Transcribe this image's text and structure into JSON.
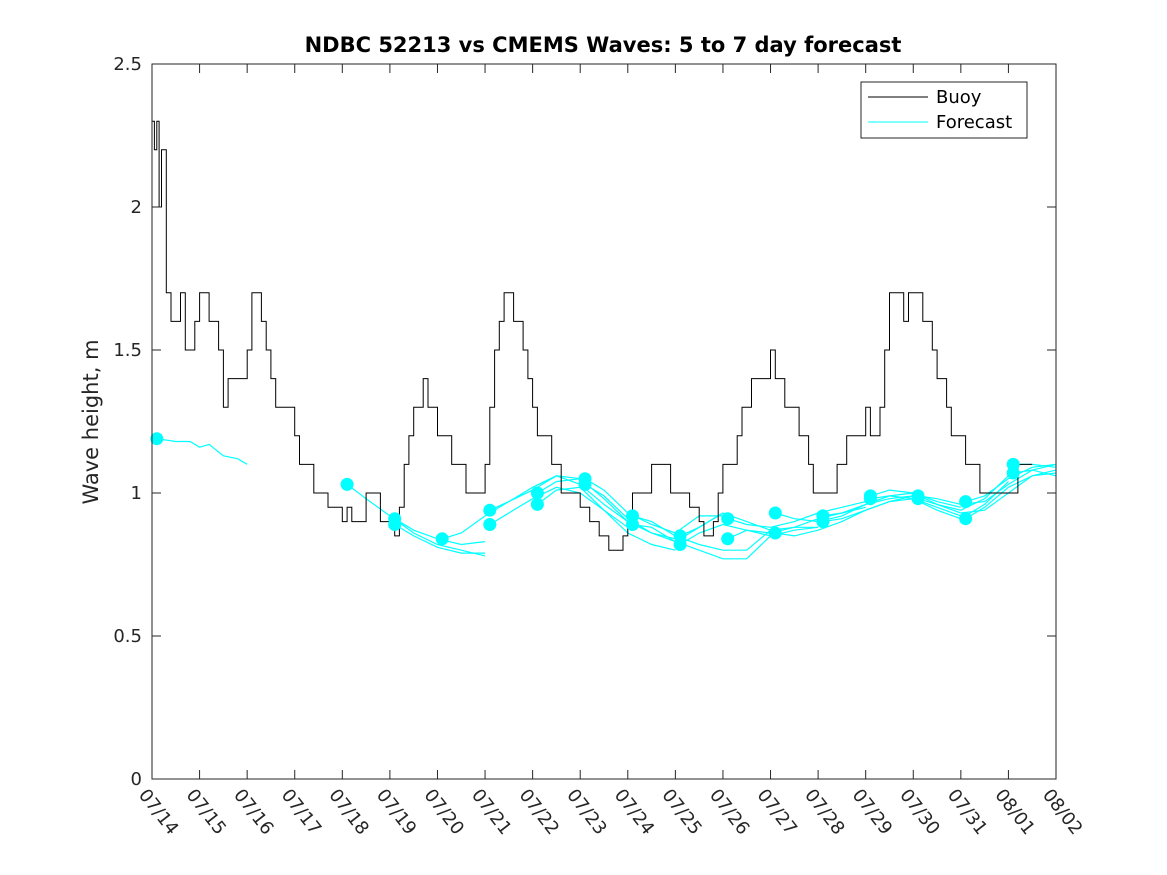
{
  "chart_data": {
    "type": "line",
    "title": "NDBC 52213 vs CMEMS Waves: 5 to 7 day forecast",
    "xlabel": "",
    "ylabel": "Wave height, m",
    "xlim": [
      "07/14",
      "08/02"
    ],
    "ylim": [
      0,
      2.5
    ],
    "yticks": [
      0,
      0.5,
      1,
      1.5,
      2,
      2.5
    ],
    "ytick_labels": [
      "0",
      "0.5",
      "1",
      "1.5",
      "2",
      "2.5"
    ],
    "xtick_labels": [
      "07/14",
      "07/15",
      "07/16",
      "07/17",
      "07/18",
      "07/19",
      "07/20",
      "07/21",
      "07/22",
      "07/23",
      "07/24",
      "07/25",
      "07/26",
      "07/27",
      "07/28",
      "07/29",
      "07/30",
      "07/31",
      "08/01",
      "08/02"
    ],
    "grid": false,
    "legend_position": "top-right",
    "colors": {
      "buoy": "#000000",
      "forecast": "#00ffff",
      "axes": "#262626"
    },
    "series": [
      {
        "name": "Buoy",
        "color": "#000000",
        "x": [
          0.0,
          0.05,
          0.1,
          0.15,
          0.2,
          0.3,
          0.4,
          0.5,
          0.6,
          0.7,
          0.8,
          0.9,
          1.0,
          1.1,
          1.2,
          1.3,
          1.4,
          1.5,
          1.6,
          1.7,
          1.8,
          1.9,
          2.0,
          2.1,
          2.2,
          2.3,
          2.4,
          2.5,
          2.6,
          2.7,
          2.8,
          2.9,
          3.0,
          3.1,
          3.2,
          3.3,
          3.4,
          3.5,
          3.6,
          3.7,
          3.8,
          3.9,
          4.0,
          4.1,
          4.2,
          4.3,
          4.4,
          4.5,
          4.6,
          4.7,
          4.8,
          4.9,
          5.0,
          5.1,
          5.2,
          5.3,
          5.4,
          5.5,
          5.6,
          5.7,
          5.8,
          5.9,
          6.0,
          6.1,
          6.2,
          6.3,
          6.4,
          6.5,
          6.6,
          6.7,
          6.8,
          6.9,
          7.0,
          7.1,
          7.2,
          7.3,
          7.4,
          7.5,
          7.6,
          7.7,
          7.8,
          7.9,
          8.0,
          8.1,
          8.2,
          8.3,
          8.4,
          8.5,
          8.6,
          8.7,
          8.8,
          8.9,
          9.0,
          9.1,
          9.2,
          9.3,
          9.4,
          9.5,
          9.6,
          9.7,
          9.8,
          9.9,
          10.0,
          10.1,
          10.2,
          10.3,
          10.4,
          10.5,
          10.6,
          10.7,
          10.8,
          10.9,
          11.0,
          11.1,
          11.2,
          11.3,
          11.4,
          11.5,
          11.6,
          11.7,
          11.8,
          11.9,
          12.0,
          12.1,
          12.2,
          12.3,
          12.4,
          12.5,
          12.6,
          12.7,
          12.8,
          12.9,
          13.0,
          13.1,
          13.2,
          13.3,
          13.4,
          13.5,
          13.6,
          13.7,
          13.8,
          13.9,
          14.0,
          14.1,
          14.2,
          14.3,
          14.4,
          14.5,
          14.6,
          14.7,
          14.8,
          14.9,
          15.0,
          15.1,
          15.2,
          15.3,
          15.4,
          15.5,
          15.6,
          15.7,
          15.8,
          15.9,
          16.0,
          16.1,
          16.2,
          16.3,
          16.4,
          16.5,
          16.6,
          16.7,
          16.8,
          16.9,
          17.0,
          17.1,
          17.2,
          17.3,
          17.4,
          17.5,
          17.6,
          17.7,
          17.8,
          17.9,
          18.0,
          18.1,
          18.2,
          18.3,
          18.4,
          18.5
        ],
        "values": [
          2.3,
          2.2,
          2.3,
          2.0,
          2.2,
          1.7,
          1.6,
          1.6,
          1.7,
          1.5,
          1.5,
          1.6,
          1.7,
          1.7,
          1.6,
          1.6,
          1.5,
          1.3,
          1.4,
          1.4,
          1.4,
          1.4,
          1.5,
          1.7,
          1.7,
          1.6,
          1.5,
          1.4,
          1.3,
          1.3,
          1.3,
          1.3,
          1.2,
          1.1,
          1.1,
          1.1,
          1.0,
          1.0,
          1.0,
          0.95,
          0.95,
          0.95,
          0.9,
          0.95,
          0.9,
          0.9,
          0.9,
          1.0,
          1.0,
          1.0,
          0.9,
          0.9,
          0.9,
          0.85,
          0.95,
          1.1,
          1.2,
          1.3,
          1.3,
          1.4,
          1.3,
          1.3,
          1.2,
          1.2,
          1.2,
          1.1,
          1.1,
          1.1,
          1.0,
          1.0,
          1.0,
          1.0,
          1.1,
          1.3,
          1.5,
          1.6,
          1.7,
          1.7,
          1.6,
          1.6,
          1.5,
          1.4,
          1.3,
          1.2,
          1.2,
          1.2,
          1.1,
          1.1,
          1.0,
          1.0,
          1.0,
          1.0,
          0.95,
          0.95,
          0.9,
          0.9,
          0.85,
          0.85,
          0.8,
          0.8,
          0.8,
          0.85,
          0.9,
          1.0,
          1.0,
          1.0,
          1.0,
          1.1,
          1.1,
          1.1,
          1.1,
          1.0,
          1.0,
          1.0,
          1.0,
          0.95,
          0.95,
          0.9,
          0.85,
          0.85,
          0.9,
          1.0,
          1.1,
          1.1,
          1.1,
          1.2,
          1.3,
          1.3,
          1.4,
          1.4,
          1.4,
          1.4,
          1.5,
          1.4,
          1.4,
          1.3,
          1.3,
          1.3,
          1.2,
          1.2,
          1.1,
          1.0,
          1.0,
          1.0,
          1.0,
          1.0,
          1.1,
          1.1,
          1.2,
          1.2,
          1.2,
          1.2,
          1.3,
          1.2,
          1.2,
          1.3,
          1.5,
          1.7,
          1.7,
          1.7,
          1.6,
          1.7,
          1.7,
          1.7,
          1.6,
          1.6,
          1.5,
          1.4,
          1.4,
          1.3,
          1.2,
          1.2,
          1.2,
          1.1,
          1.1,
          1.1,
          1.0,
          1.0,
          1.0,
          1.0,
          1.0,
          1.0,
          1.0,
          1.0,
          1.1,
          1.1,
          1.1,
          1.1
        ]
      },
      {
        "name": "Forecast",
        "color": "#00ffff",
        "segments": [
          {
            "x": [
              0.1,
              0.5,
              0.8,
              1.0,
              1.2,
              1.5,
              1.8,
              2.0
            ],
            "values": [
              1.19,
              1.18,
              1.18,
              1.16,
              1.17,
              1.13,
              1.12,
              1.1
            ]
          },
          {
            "x": [
              4.1,
              4.5,
              5.0,
              5.5,
              6.0,
              6.5,
              7.0
            ],
            "values": [
              1.03,
              0.98,
              0.92,
              0.86,
              0.82,
              0.8,
              0.78
            ]
          },
          {
            "x": [
              5.1,
              5.5,
              6.0,
              6.5,
              7.0
            ],
            "values": [
              0.91,
              0.87,
              0.84,
              0.82,
              0.83
            ]
          },
          {
            "x": [
              5.1,
              5.5,
              6.0,
              6.5,
              7.0
            ],
            "values": [
              0.89,
              0.85,
              0.81,
              0.79,
              0.79
            ]
          },
          {
            "x": [
              6.1,
              6.5,
              7.0,
              7.5,
              8.0,
              8.5,
              9.0
            ],
            "values": [
              0.84,
              0.86,
              0.92,
              0.97,
              1.02,
              1.06,
              1.05
            ]
          },
          {
            "x": [
              7.1,
              7.5,
              8.0,
              8.5,
              9.0,
              9.5,
              10.0
            ],
            "values": [
              0.94,
              0.97,
              1.01,
              1.06,
              1.03,
              0.96,
              0.9
            ]
          },
          {
            "x": [
              7.1,
              7.5,
              8.0,
              8.5,
              9.0,
              9.5,
              10.0
            ],
            "values": [
              0.89,
              0.93,
              0.98,
              1.02,
              1.0,
              0.94,
              0.88
            ]
          },
          {
            "x": [
              8.1,
              8.5,
              9.0,
              9.5,
              10.0,
              10.5,
              11.0
            ],
            "values": [
              1.0,
              1.04,
              1.05,
              0.98,
              0.9,
              0.86,
              0.84
            ]
          },
          {
            "x": [
              8.1,
              8.5,
              9.0,
              9.5,
              10.0,
              10.5,
              11.0
            ],
            "values": [
              0.96,
              1.01,
              1.02,
              0.94,
              0.86,
              0.82,
              0.8
            ]
          },
          {
            "x": [
              9.1,
              9.5,
              10.0,
              10.5,
              11.0,
              11.5,
              12.0
            ],
            "values": [
              1.05,
              1.01,
              0.93,
              0.89,
              0.86,
              0.92,
              0.92
            ]
          },
          {
            "x": [
              9.1,
              9.5,
              10.0,
              10.5,
              11.0,
              11.5,
              12.0
            ],
            "values": [
              1.03,
              0.99,
              0.91,
              0.86,
              0.83,
              0.88,
              0.93
            ]
          },
          {
            "x": [
              10.1,
              10.5,
              11.0,
              11.5,
              12.0,
              12.5,
              13.0
            ],
            "values": [
              0.92,
              0.9,
              0.85,
              0.82,
              0.8,
              0.8,
              0.87
            ]
          },
          {
            "x": [
              10.1,
              10.5,
              11.0,
              11.5,
              12.0,
              12.5,
              13.0
            ],
            "values": [
              0.89,
              0.88,
              0.83,
              0.8,
              0.77,
              0.77,
              0.85
            ]
          },
          {
            "x": [
              11.1,
              11.5,
              12.0,
              12.5,
              13.0,
              13.5,
              14.0
            ],
            "values": [
              0.85,
              0.88,
              0.93,
              0.9,
              0.87,
              0.88,
              0.88
            ]
          },
          {
            "x": [
              11.1,
              11.5,
              12.0,
              12.5,
              13.0,
              13.5,
              14.0
            ],
            "values": [
              0.82,
              0.86,
              0.89,
              0.87,
              0.85,
              0.87,
              0.88
            ]
          },
          {
            "x": [
              12.1,
              12.5,
              13.0,
              13.5,
              14.0,
              14.5,
              15.0
            ],
            "values": [
              0.91,
              0.89,
              0.88,
              0.9,
              0.93,
              0.95,
              0.97
            ]
          },
          {
            "x": [
              12.1,
              12.5,
              13.0,
              13.5,
              14.0,
              14.5,
              15.0
            ],
            "values": [
              0.84,
              0.87,
              0.86,
              0.88,
              0.91,
              0.93,
              0.95
            ]
          },
          {
            "x": [
              13.1,
              13.5,
              14.0,
              14.5,
              15.0,
              15.5,
              16.0
            ],
            "values": [
              0.93,
              0.91,
              0.9,
              0.92,
              0.96,
              0.98,
              0.99
            ]
          },
          {
            "x": [
              13.1,
              13.5,
              14.0,
              14.5,
              15.0,
              15.5,
              16.0
            ],
            "values": [
              0.86,
              0.85,
              0.87,
              0.9,
              0.94,
              0.97,
              0.99
            ]
          },
          {
            "x": [
              14.1,
              14.5,
              15.0,
              15.5,
              16.0,
              16.5,
              17.0
            ],
            "values": [
              0.92,
              0.93,
              0.96,
              0.99,
              1.0,
              0.97,
              0.95
            ]
          },
          {
            "x": [
              14.1,
              14.5,
              15.0,
              15.5,
              16.0,
              16.5,
              17.0
            ],
            "values": [
              0.9,
              0.91,
              0.94,
              0.97,
              0.98,
              0.95,
              0.92
            ]
          },
          {
            "x": [
              15.1,
              15.5,
              16.0,
              16.5,
              17.0,
              17.5,
              18.0
            ],
            "values": [
              0.99,
              1.01,
              1.0,
              0.96,
              0.94,
              0.98,
              1.06
            ]
          },
          {
            "x": [
              15.1,
              15.5,
              16.0,
              16.5,
              17.0,
              17.5,
              18.0
            ],
            "values": [
              0.98,
              0.99,
              0.98,
              0.94,
              0.91,
              0.96,
              1.04
            ]
          },
          {
            "x": [
              16.1,
              16.5,
              17.0,
              17.5,
              18.0,
              18.5,
              19.0
            ],
            "values": [
              0.99,
              0.98,
              0.96,
              0.97,
              1.03,
              1.08,
              1.1
            ]
          },
          {
            "x": [
              16.1,
              16.5,
              17.0,
              17.5,
              18.0,
              18.5,
              19.0
            ],
            "values": [
              0.98,
              0.96,
              0.93,
              0.94,
              1.0,
              1.06,
              1.08
            ]
          },
          {
            "x": [
              17.1,
              17.5,
              18.0,
              18.5,
              19.0
            ],
            "values": [
              0.97,
              0.99,
              1.05,
              1.09,
              1.1
            ]
          },
          {
            "x": [
              17.1,
              17.5,
              18.0,
              18.5,
              19.0
            ],
            "values": [
              0.91,
              0.95,
              1.02,
              1.06,
              1.07
            ]
          },
          {
            "x": [
              18.1,
              18.5,
              19.0
            ],
            "values": [
              1.1,
              1.1,
              1.09
            ]
          },
          {
            "x": [
              18.1,
              18.5,
              19.0
            ],
            "values": [
              1.07,
              1.08,
              1.06
            ]
          }
        ],
        "markers": {
          "x": [
            0.1,
            4.1,
            5.1,
            5.1,
            6.1,
            7.1,
            7.1,
            8.1,
            8.1,
            9.1,
            9.1,
            10.1,
            10.1,
            11.1,
            11.1,
            12.1,
            12.1,
            13.1,
            13.1,
            14.1,
            14.1,
            15.1,
            15.1,
            16.1,
            16.1,
            17.1,
            17.1,
            18.1,
            18.1
          ],
          "values": [
            1.19,
            1.03,
            0.91,
            0.89,
            0.84,
            0.94,
            0.89,
            1.0,
            0.96,
            1.05,
            1.03,
            0.92,
            0.89,
            0.85,
            0.82,
            0.91,
            0.84,
            0.93,
            0.86,
            0.92,
            0.9,
            0.99,
            0.98,
            0.99,
            0.98,
            0.97,
            0.91,
            1.1,
            1.07
          ]
        }
      }
    ]
  }
}
